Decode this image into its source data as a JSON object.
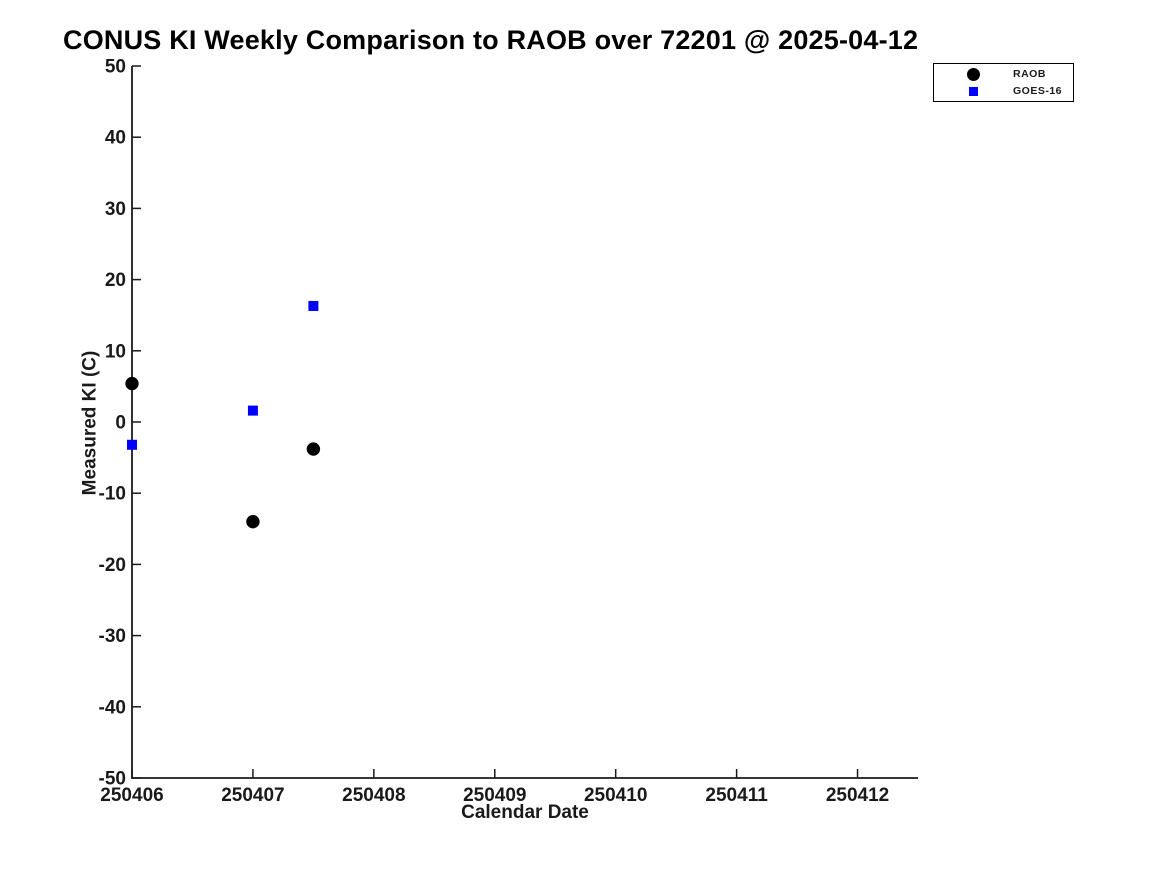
{
  "chart_data": {
    "type": "scatter",
    "title": "CONUS KI Weekly Comparison to RAOB over 72201 @ 2025-04-12",
    "xlabel": "Calendar Date",
    "ylabel": "Measured KI (C)",
    "xlim": [
      250406,
      250412.5
    ],
    "ylim": [
      -50,
      50
    ],
    "x_ticks": [
      "250406",
      "250407",
      "250408",
      "250409",
      "250410",
      "250411",
      "250412"
    ],
    "y_ticks": [
      "50",
      "40",
      "30",
      "20",
      "10",
      "0",
      "-10",
      "-20",
      "-30",
      "-40",
      "-50"
    ],
    "grid": false,
    "legend": {
      "position": "top-right",
      "border": true,
      "entries": [
        "RAOB",
        "GOES-16"
      ]
    },
    "series": [
      {
        "name": "RAOB",
        "marker": "circle",
        "color": "#000000",
        "points": [
          {
            "x": 250406.0,
            "y": 5.4
          },
          {
            "x": 250407.0,
            "y": -14.0
          },
          {
            "x": 250407.5,
            "y": -3.8
          }
        ]
      },
      {
        "name": "GOES-16",
        "marker": "square",
        "color": "#0000ff",
        "points": [
          {
            "x": 250406.0,
            "y": -3.2
          },
          {
            "x": 250407.0,
            "y": 1.6
          },
          {
            "x": 250407.5,
            "y": 16.3
          }
        ]
      }
    ],
    "colors": {
      "axis": "#1a1a1a",
      "tick_text": "#1a1a1a",
      "title_text": "#000000",
      "background": "#ffffff"
    }
  }
}
